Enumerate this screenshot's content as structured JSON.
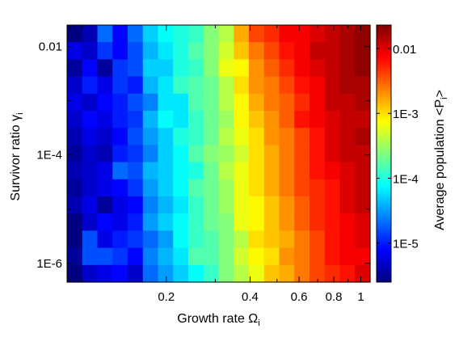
{
  "chart_data": {
    "type": "heatmap",
    "xlabel": "Growth rate Ω",
    "xlabel_sub": "i",
    "ylabel": "Survivor ratio γ",
    "ylabel_sub": "i",
    "colorbar_label": "Average population  <P",
    "colorbar_label_sub": "i",
    "colorbar_label_end": ">",
    "x_scale": "log",
    "y_scale": "log",
    "color_scale": "log",
    "xlim": [
      0.088,
      1.08
    ],
    "ylim": [
      4.5e-07,
      0.025
    ],
    "clim": [
      2.5e-06,
      0.023
    ],
    "x_ticks": [
      {
        "value": 0.2,
        "label": "0.2"
      },
      {
        "value": 0.4,
        "label": "0.4"
      },
      {
        "value": 0.6,
        "label": "0.6"
      },
      {
        "value": 0.8,
        "label": "0.8"
      },
      {
        "value": 1.0,
        "label": "1"
      }
    ],
    "y_ticks": [
      {
        "value": 0.01,
        "label": "0.01"
      },
      {
        "value": 0.0001,
        "label": "1E-4"
      },
      {
        "value": 1e-06,
        "label": "1E-6"
      }
    ],
    "colorbar_ticks": [
      {
        "value": 0.01,
        "label": "0.01"
      },
      {
        "value": 0.001,
        "label": "1E-3"
      },
      {
        "value": 0.0001,
        "label": "1E-4"
      },
      {
        "value": 1e-05,
        "label": "1E-5"
      }
    ],
    "n_cols": 20,
    "n_rows": 15,
    "rows_order": "top-to-bottom (high γ to low γ)",
    "colormap": "jet",
    "grid": false,
    "log10_values": [
      [
        -5.6,
        -5.4,
        -4.7,
        -5.1,
        -4.7,
        -4.3,
        -4.1,
        -4.0,
        -3.9,
        -3.6,
        -3.4,
        -2.8,
        -2.4,
        -2.3,
        -2.1,
        -2.1,
        -2.0,
        -1.9,
        -1.8,
        -1.7
      ],
      [
        -5.2,
        -5.3,
        -4.9,
        -5.1,
        -4.8,
        -4.4,
        -4.2,
        -4.0,
        -3.8,
        -3.6,
        -3.3,
        -2.9,
        -2.6,
        -2.4,
        -2.2,
        -2.1,
        -1.9,
        -1.9,
        -1.8,
        -1.7
      ],
      [
        -5.5,
        -5.1,
        -5.5,
        -4.9,
        -4.8,
        -4.3,
        -4.3,
        -4.0,
        -3.9,
        -3.6,
        -3.2,
        -3.1,
        -2.7,
        -2.5,
        -2.3,
        -2.1,
        -2.0,
        -1.9,
        -1.8,
        -1.7
      ],
      [
        -5.3,
        -5.0,
        -5.2,
        -4.9,
        -5.0,
        -4.4,
        -4.2,
        -3.9,
        -3.8,
        -3.7,
        -3.4,
        -3.0,
        -2.7,
        -2.6,
        -2.4,
        -2.2,
        -2.1,
        -1.9,
        -1.8,
        -1.8
      ],
      [
        -5.2,
        -5.3,
        -5.1,
        -5.0,
        -4.8,
        -4.6,
        -4.2,
        -4.2,
        -3.8,
        -3.7,
        -3.4,
        -3.1,
        -2.8,
        -2.6,
        -2.5,
        -2.3,
        -2.1,
        -1.9,
        -1.9,
        -1.8
      ],
      [
        -5.3,
        -5.1,
        -5.2,
        -5.0,
        -4.9,
        -4.4,
        -4.1,
        -4.2,
        -3.9,
        -3.7,
        -3.5,
        -3.1,
        -2.9,
        -2.7,
        -2.5,
        -2.2,
        -2.1,
        -2.0,
        -1.9,
        -1.9
      ],
      [
        -5.4,
        -5.2,
        -5.3,
        -5.1,
        -4.8,
        -4.5,
        -4.3,
        -4.0,
        -3.9,
        -3.7,
        -3.4,
        -3.2,
        -3.0,
        -2.7,
        -2.6,
        -2.4,
        -2.2,
        -2.0,
        -1.9,
        -1.8
      ],
      [
        -5.5,
        -5.3,
        -5.4,
        -5.0,
        -4.9,
        -4.6,
        -4.3,
        -4.1,
        -3.8,
        -3.6,
        -3.5,
        -3.3,
        -3.0,
        -2.8,
        -2.6,
        -2.4,
        -2.2,
        -2.0,
        -1.9,
        -1.9
      ],
      [
        -5.4,
        -5.3,
        -5.2,
        -4.7,
        -4.8,
        -4.4,
        -4.3,
        -4.1,
        -4.0,
        -3.7,
        -3.4,
        -3.2,
        -3.0,
        -2.8,
        -2.6,
        -2.4,
        -2.2,
        -2.1,
        -2.0,
        -1.9
      ],
      [
        -5.5,
        -5.3,
        -5.2,
        -5.1,
        -4.9,
        -4.5,
        -4.3,
        -4.1,
        -3.8,
        -3.7,
        -3.5,
        -3.2,
        -3.0,
        -2.8,
        -2.6,
        -2.4,
        -2.3,
        -2.2,
        -2.0,
        -1.9
      ],
      [
        -5.4,
        -5.2,
        -5.5,
        -5.2,
        -5.1,
        -4.6,
        -4.4,
        -4.2,
        -3.9,
        -3.7,
        -3.5,
        -3.2,
        -3.1,
        -2.9,
        -2.7,
        -2.5,
        -2.3,
        -2.2,
        -2.0,
        -1.9
      ],
      [
        -5.6,
        -5.3,
        -5.1,
        -5.2,
        -5.0,
        -4.5,
        -4.3,
        -4.1,
        -3.9,
        -3.7,
        -3.6,
        -3.2,
        -3.1,
        -2.9,
        -2.7,
        -2.5,
        -2.3,
        -2.2,
        -2.1,
        -2.0
      ],
      [
        -5.7,
        -4.8,
        -5.2,
        -5.0,
        -4.9,
        -4.7,
        -4.5,
        -4.1,
        -3.9,
        -3.8,
        -3.6,
        -3.4,
        -3.0,
        -2.9,
        -2.8,
        -2.6,
        -2.4,
        -2.2,
        -2.1,
        -2.0
      ],
      [
        -5.5,
        -4.8,
        -4.8,
        -4.9,
        -5.1,
        -4.6,
        -4.4,
        -4.2,
        -3.8,
        -3.8,
        -3.6,
        -3.3,
        -3.1,
        -3.0,
        -2.7,
        -2.6,
        -2.4,
        -2.2,
        -2.1,
        -2.1
      ],
      [
        -5.6,
        -5.3,
        -5.2,
        -5.1,
        -5.3,
        -4.7,
        -4.5,
        -4.3,
        -4.1,
        -3.9,
        -3.6,
        -3.4,
        -3.2,
        -2.9,
        -2.8,
        -2.6,
        -2.4,
        -2.3,
        -2.2,
        -2.0
      ]
    ]
  }
}
